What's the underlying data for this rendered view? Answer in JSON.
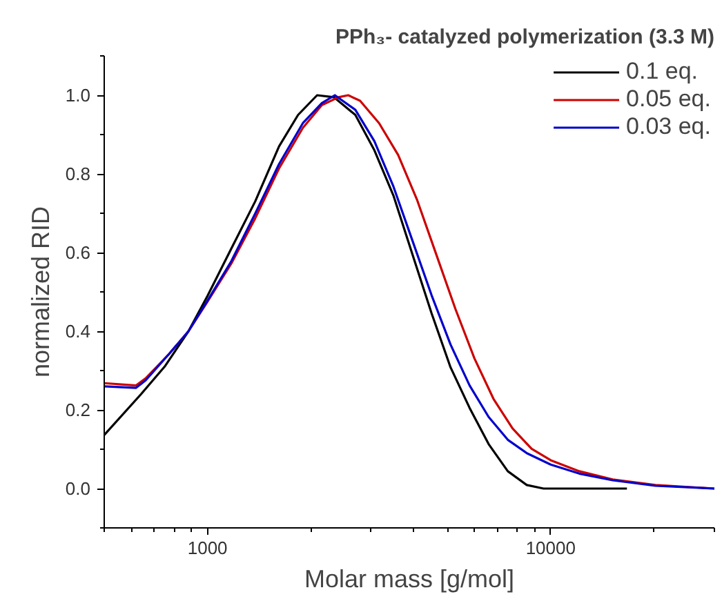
{
  "chart_data": {
    "type": "line",
    "title": "PPh₃- catalyzed polymerization (3.3 M)",
    "xlabel": "Molar mass [g/mol]",
    "ylabel": "normalized RID",
    "log": "x",
    "xlim": [
      500,
      30000
    ],
    "xticks": [
      1000,
      10000
    ],
    "ylim": [
      -0.1,
      1.1
    ],
    "yticks": [
      {
        "value": 0,
        "label": "0.0"
      },
      {
        "value": 0.2,
        "label": "0.2"
      },
      {
        "value": 0.4,
        "label": "0.4"
      },
      {
        "value": 0.6,
        "label": "0.6"
      },
      {
        "value": 0.8,
        "label": "0.8"
      },
      {
        "value": 1.0,
        "label": "1.0"
      }
    ],
    "grid": false,
    "legend": "top right",
    "line_style": "solid",
    "marker": "none",
    "series": [
      {
        "name": "0.1 eq.",
        "color": "#000000",
        "x": [
          500,
          640,
          750,
          880,
          1000,
          1173,
          1377,
          1616,
          1836,
          2086,
          2334,
          2696,
          3064,
          3481,
          3956,
          4495,
          5108,
          5804,
          6595,
          7499,
          8520,
          9530,
          16680
        ],
        "values": [
          0.136,
          0.24,
          0.31,
          0.4,
          0.49,
          0.61,
          0.73,
          0.87,
          0.95,
          1.0,
          0.995,
          0.95,
          0.86,
          0.745,
          0.595,
          0.446,
          0.308,
          0.205,
          0.113,
          0.044,
          0.009,
          0,
          0
        ]
      },
      {
        "name": "0.05 eq.",
        "color": "#cc0000",
        "x": [
          500,
          619,
          660,
          774,
          880,
          1000,
          1173,
          1377,
          1616,
          1896,
          2154,
          2409,
          2570,
          2783,
          3162,
          3594,
          4084,
          4642,
          5275,
          5995,
          6813,
          7743,
          8799,
          10000,
          12115,
          15160,
          20200,
          30000
        ],
        "values": [
          0.268,
          0.262,
          0.28,
          0.343,
          0.4,
          0.475,
          0.572,
          0.687,
          0.814,
          0.917,
          0.975,
          0.995,
          1.0,
          0.986,
          0.929,
          0.848,
          0.733,
          0.595,
          0.457,
          0.331,
          0.228,
          0.153,
          0.101,
          0.072,
          0.044,
          0.023,
          0.009,
          0
        ]
      },
      {
        "name": "0.03 eq.",
        "color": "#0000cc",
        "x": [
          500,
          619,
          660,
          774,
          880,
          1000,
          1173,
          1377,
          1616,
          1896,
          2154,
          2350,
          2696,
          3064,
          3481,
          3956,
          4495,
          5108,
          5804,
          6595,
          7499,
          8520,
          10000,
          12115,
          15160,
          20200,
          30000
        ],
        "values": [
          0.26,
          0.256,
          0.275,
          0.343,
          0.4,
          0.478,
          0.578,
          0.699,
          0.825,
          0.929,
          0.98,
          1.0,
          0.963,
          0.883,
          0.768,
          0.63,
          0.492,
          0.366,
          0.262,
          0.182,
          0.124,
          0.09,
          0.061,
          0.038,
          0.021,
          0.007,
          0
        ]
      }
    ]
  }
}
